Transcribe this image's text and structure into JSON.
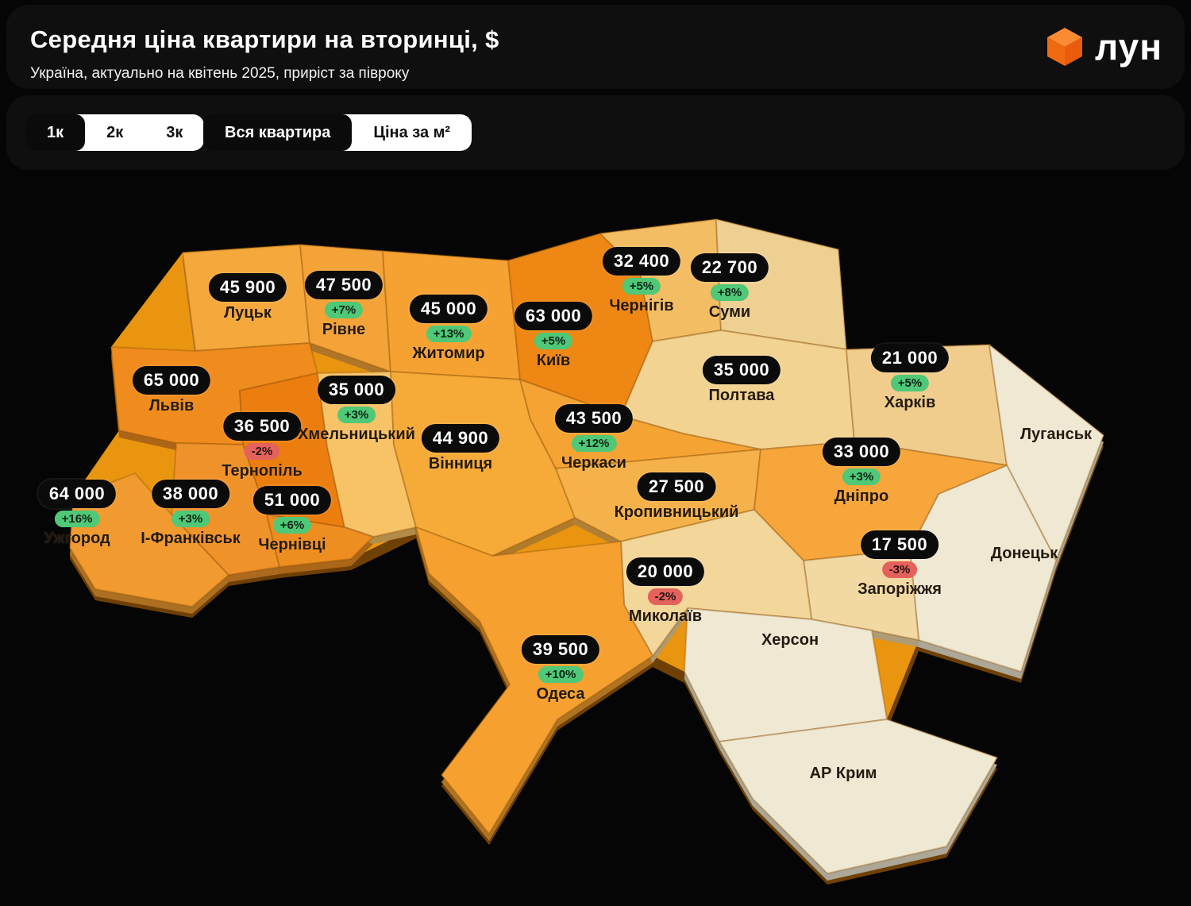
{
  "header": {
    "title": "Середня ціна квартири на вторинці, $",
    "subtitle": "Україна, актуально на квітень 2025, приріст за півроку",
    "logo_text": "лун",
    "logo_color": "#f4731c"
  },
  "controls": {
    "rooms": [
      {
        "label": "1к",
        "active": true
      },
      {
        "label": "2к",
        "active": false
      },
      {
        "label": "3к",
        "active": false
      }
    ],
    "modes": [
      {
        "label": "Вся квартира",
        "active": true
      },
      {
        "label": "Ціна за м²",
        "active": false
      }
    ]
  },
  "map": {
    "badge_up_color": "#4fc878",
    "badge_down_color": "#e4625c",
    "regions": [
      {
        "id": "volyn",
        "label": "Луцьк",
        "price": "45 900",
        "delta": null,
        "color": "#f5a83b"
      },
      {
        "id": "rivne",
        "label": "Рівне",
        "price": "47 500",
        "delta": "+7%",
        "color": "#f4a338"
      },
      {
        "id": "zhytomyr",
        "label": "Житомир",
        "price": "45 000",
        "delta": "+13%",
        "color": "#f6a233"
      },
      {
        "id": "kyiv",
        "label": "Київ",
        "price": "63 000",
        "delta": "+5%",
        "color": "#ee8714"
      },
      {
        "id": "chernihiv",
        "label": "Чернігів",
        "price": "32 400",
        "delta": "+5%",
        "color": "#f3bd63"
      },
      {
        "id": "sumy",
        "label": "Суми",
        "price": "22 700",
        "delta": "+8%",
        "color": "#eed093"
      },
      {
        "id": "poltava",
        "label": "Полтава",
        "price": "35 000",
        "delta": null,
        "color": "#f3d392"
      },
      {
        "id": "kharkiv",
        "label": "Харків",
        "price": "21 000",
        "delta": "+5%",
        "color": "#f0cd8d"
      },
      {
        "id": "luhansk",
        "label": "Луганськ",
        "price": null,
        "delta": null,
        "color": "#efe8d2"
      },
      {
        "id": "donetsk",
        "label": "Донецьк",
        "price": null,
        "delta": null,
        "color": "#efe8d2"
      },
      {
        "id": "lviv",
        "label": "Львів",
        "price": "65 000",
        "delta": null,
        "color": "#ef8c1d"
      },
      {
        "id": "ternopil",
        "label": "Тернопіль",
        "price": "36 500",
        "delta": "-2%",
        "color": "#ec7e10"
      },
      {
        "id": "khmelnytskyi",
        "label": "Хмельницький",
        "price": "35 000",
        "delta": "+3%",
        "color": "#f8c266"
      },
      {
        "id": "vinnytsia",
        "label": "Вінниця",
        "price": "44 900",
        "delta": null,
        "color": "#f6aa38"
      },
      {
        "id": "cherkasy",
        "label": "Черкаси",
        "price": "43 500",
        "delta": "+12%",
        "color": "#f5a434"
      },
      {
        "id": "zakarpattia",
        "label": "Ужгород",
        "price": "64 000",
        "delta": "+16%",
        "color": "#f09a2f"
      },
      {
        "id": "ivano",
        "label": "І-Франківськ",
        "price": "38 000",
        "delta": "+3%",
        "color": "#f0922a"
      },
      {
        "id": "chernivtsi",
        "label": "Чернівці",
        "price": "51 000",
        "delta": "+6%",
        "color": "#ee8d20"
      },
      {
        "id": "kirovohrad",
        "label": "Кропивницький",
        "price": "27 500",
        "delta": null,
        "color": "#f6b24a"
      },
      {
        "id": "dnipro",
        "label": "Дніпро",
        "price": "33 000",
        "delta": "+3%",
        "color": "#f7a63b"
      },
      {
        "id": "zaporizhzhia",
        "label": "Запоріжжя",
        "price": "17 500",
        "delta": "-3%",
        "color": "#f2d9a4"
      },
      {
        "id": "mykolaiv",
        "label": "Миколаїв",
        "price": "20 000",
        "delta": "-2%",
        "color": "#f2d69a"
      },
      {
        "id": "odesa",
        "label": "Одеса",
        "price": "39 500",
        "delta": "+10%",
        "color": "#f5a02f"
      },
      {
        "id": "kherson",
        "label": "Херсон",
        "price": null,
        "delta": null,
        "color": "#efe8d2"
      },
      {
        "id": "crimea",
        "label": "АР Крим",
        "price": null,
        "delta": null,
        "color": "#efe8d2"
      }
    ]
  }
}
